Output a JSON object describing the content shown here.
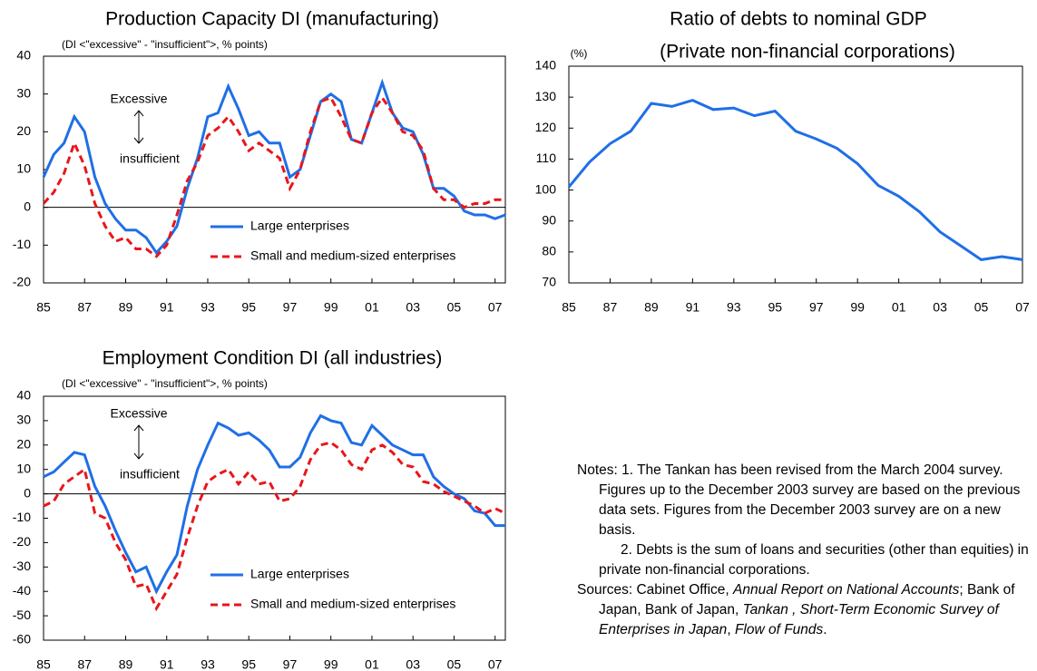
{
  "chart_data": [
    {
      "type": "line",
      "title": "Production Capacity DI (manufacturing)",
      "annotation": "(DI <\"excessive\" - \"insufficient\">, % points)",
      "upper_label": "Excessive",
      "lower_label": "insufficient",
      "x": [
        1985,
        1985.5,
        1986,
        1986.5,
        1987,
        1987.5,
        1988,
        1988.5,
        1989,
        1989.5,
        1990,
        1990.5,
        1991,
        1991.5,
        1992,
        1992.5,
        1993,
        1993.5,
        1994,
        1994.5,
        1995,
        1995.5,
        1996,
        1996.5,
        1997,
        1997.5,
        1998,
        1998.5,
        1999,
        1999.5,
        2000,
        2000.5,
        2001,
        2001.5,
        2002,
        2002.5,
        2003,
        2003.5,
        2004,
        2004.5,
        2005,
        2005.5,
        2006,
        2006.5,
        2007,
        2007.5
      ],
      "series": [
        {
          "name": "Large enterprises",
          "color": "#1f6fe6",
          "dash": false,
          "values": [
            8,
            14,
            17,
            24,
            20,
            8,
            1,
            -3,
            -6,
            -6,
            -8,
            -12,
            -9,
            -5,
            5,
            13,
            24,
            25,
            32,
            26,
            19,
            20,
            17,
            17,
            8,
            10,
            19,
            28,
            30,
            28,
            18,
            17,
            25,
            33,
            25,
            21,
            20,
            14,
            5,
            5,
            3,
            -1,
            -2,
            -2,
            -3,
            -2
          ]
        },
        {
          "name": "Small and medium-sized enterprises",
          "color": "#e8161b",
          "dash": true,
          "values": [
            1,
            4,
            9,
            17,
            11,
            1,
            -5,
            -9,
            -8,
            -11,
            -11,
            -13,
            -10,
            -2,
            7,
            12,
            19,
            21,
            24,
            20,
            15,
            17,
            15,
            13,
            5,
            10,
            20,
            28,
            29,
            24,
            18,
            17,
            25,
            29,
            25,
            20,
            19,
            15,
            5,
            2,
            2,
            0,
            1,
            1,
            2,
            2
          ]
        }
      ],
      "xlim": [
        1985,
        2007.5
      ],
      "ylim": [
        -20,
        40
      ],
      "xticks": [
        {
          "value": 1985,
          "label": "85"
        },
        {
          "value": 1987,
          "label": "87"
        },
        {
          "value": 1989,
          "label": "89"
        },
        {
          "value": 1991,
          "label": "91"
        },
        {
          "value": 1993,
          "label": "93"
        },
        {
          "value": 1995,
          "label": "95"
        },
        {
          "value": 1997,
          "label": "97"
        },
        {
          "value": 1999,
          "label": "99"
        },
        {
          "value": 2001,
          "label": "01"
        },
        {
          "value": 2003,
          "label": "03"
        },
        {
          "value": 2005,
          "label": "05"
        },
        {
          "value": 2007,
          "label": "07"
        }
      ],
      "yticks": [
        -20,
        -10,
        0,
        10,
        20,
        30,
        40
      ],
      "hline": 0,
      "legend": "lower right"
    },
    {
      "type": "line",
      "title": "Ratio of debts to nominal GDP",
      "subtitle": "(Private non-financial corporations)",
      "unit_label": "(%)",
      "x": [
        1985,
        1986,
        1987,
        1988,
        1989,
        1990,
        1991,
        1992,
        1993,
        1994,
        1995,
        1996,
        1997,
        1998,
        1999,
        2000,
        2001,
        2002,
        2003,
        2004,
        2005,
        2006,
        2007
      ],
      "series": [
        {
          "color": "#1f6fe6",
          "dash": false,
          "values": [
            101,
            109,
            115,
            119,
            128,
            127,
            129,
            126,
            126.5,
            124,
            125.5,
            119,
            116.5,
            113.5,
            108.5,
            101.5,
            98,
            93,
            86.5,
            82,
            77.5,
            78.5,
            77.5
          ]
        }
      ],
      "xlim": [
        1985,
        2007
      ],
      "ylim": [
        70,
        140
      ],
      "xticks": [
        {
          "value": 1985,
          "label": "85"
        },
        {
          "value": 1987,
          "label": "87"
        },
        {
          "value": 1989,
          "label": "89"
        },
        {
          "value": 1991,
          "label": "91"
        },
        {
          "value": 1993,
          "label": "93"
        },
        {
          "value": 1995,
          "label": "95"
        },
        {
          "value": 1997,
          "label": "97"
        },
        {
          "value": 1999,
          "label": "99"
        },
        {
          "value": 2001,
          "label": "01"
        },
        {
          "value": 2003,
          "label": "03"
        },
        {
          "value": 2005,
          "label": "05"
        },
        {
          "value": 2007,
          "label": "07"
        }
      ],
      "yticks": [
        70,
        80,
        90,
        100,
        110,
        120,
        130,
        140
      ]
    },
    {
      "type": "line",
      "title": "Employment Condition DI (all industries)",
      "annotation": "(DI <\"excessive\" - \"insufficient\">, % points)",
      "upper_label": "Excessive",
      "lower_label": "insufficient",
      "x": [
        1985,
        1985.5,
        1986,
        1986.5,
        1987,
        1987.5,
        1988,
        1988.5,
        1989,
        1989.5,
        1990,
        1990.5,
        1991,
        1991.5,
        1992,
        1992.5,
        1993,
        1993.5,
        1994,
        1994.5,
        1995,
        1995.5,
        1996,
        1996.5,
        1997,
        1997.5,
        1998,
        1998.5,
        1999,
        1999.5,
        2000,
        2000.5,
        2001,
        2001.5,
        2002,
        2002.5,
        2003,
        2003.5,
        2004,
        2004.5,
        2005,
        2005.5,
        2006,
        2006.5,
        2007,
        2007.5
      ],
      "series": [
        {
          "name": "Large enterprises",
          "color": "#1f6fe6",
          "dash": false,
          "values": [
            7,
            9,
            13,
            17,
            16,
            3,
            -5,
            -15,
            -24,
            -32,
            -30,
            -40,
            -32,
            -25,
            -5,
            10,
            20,
            29,
            27,
            24,
            25,
            22,
            18,
            11,
            11,
            15,
            25,
            32,
            30,
            29,
            21,
            20,
            28,
            24,
            20,
            18,
            16,
            16,
            7,
            3,
            0,
            -2,
            -7,
            -8,
            -13,
            -13
          ]
        },
        {
          "name": "Small and medium-sized enterprises",
          "color": "#e8161b",
          "dash": true,
          "values": [
            -5,
            -3,
            4,
            7,
            10,
            -8,
            -10,
            -20,
            -27,
            -38,
            -37,
            -47,
            -40,
            -33,
            -18,
            -5,
            5,
            8,
            10,
            4,
            9,
            4,
            5,
            -3,
            -2,
            3,
            14,
            20,
            21,
            18,
            12,
            10,
            18,
            20,
            17,
            12,
            11,
            5,
            4,
            1,
            -1,
            -3,
            -5,
            -8,
            -6,
            -8
          ]
        }
      ],
      "xlim": [
        1985,
        2007.5
      ],
      "ylim": [
        -60,
        40
      ],
      "xticks": [
        {
          "value": 1985,
          "label": "85"
        },
        {
          "value": 1987,
          "label": "87"
        },
        {
          "value": 1989,
          "label": "89"
        },
        {
          "value": 1991,
          "label": "91"
        },
        {
          "value": 1993,
          "label": "93"
        },
        {
          "value": 1995,
          "label": "95"
        },
        {
          "value": 1997,
          "label": "97"
        },
        {
          "value": 1999,
          "label": "99"
        },
        {
          "value": 2001,
          "label": "01"
        },
        {
          "value": 2003,
          "label": "03"
        },
        {
          "value": 2005,
          "label": "05"
        },
        {
          "value": 2007,
          "label": "07"
        }
      ],
      "yticks": [
        -60,
        -50,
        -40,
        -30,
        -20,
        -10,
        0,
        10,
        20,
        30,
        40
      ],
      "hline": 0,
      "legend": "lower right"
    }
  ],
  "notes": {
    "label": "Notes:",
    "items": [
      "1. The Tankan has been revised from the March 2004 survey. Figures up to the December 2003 survey are based on the previous data sets. Figures from the December 2003 survey are on a new basis.",
      "2. Debts is the sum of loans and securities (other than equities) in private non-financial corporations."
    ]
  },
  "sources": {
    "label": "Sources:",
    "parts": [
      {
        "text": "Cabinet Office, ",
        "italic": false
      },
      {
        "text": "Annual Report on National Accounts",
        "italic": true
      },
      {
        "text": "; Bank of Japan, Bank of Japan, ",
        "italic": false
      },
      {
        "text": "Tankan , Short-Term Economic Survey of Enterprises in Japan",
        "italic": true
      },
      {
        "text": ", ",
        "italic": false
      },
      {
        "text": "Flow of Funds",
        "italic": true
      },
      {
        "text": ".",
        "italic": false
      }
    ]
  }
}
